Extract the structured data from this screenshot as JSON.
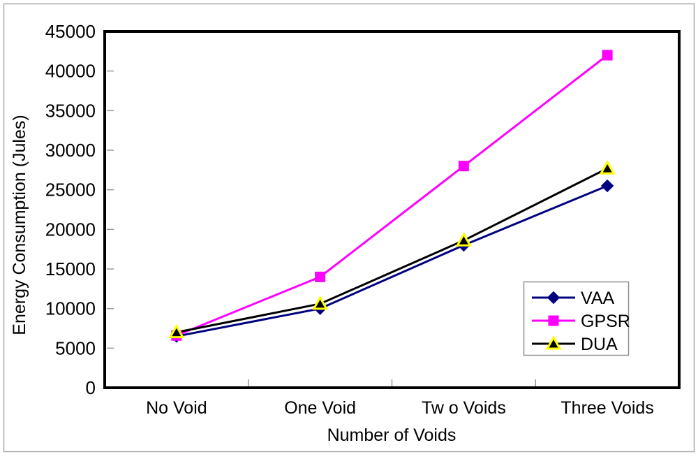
{
  "figure": {
    "background": "#ffffff",
    "outer_border_color": "#a9a9a9",
    "plot_frame_color": "#000000",
    "tick_color": "#9a9a9a"
  },
  "chart_data": {
    "type": "line",
    "title": "",
    "xlabel": "Number of Voids",
    "ylabel": "Energy Consumption (Jules)",
    "categories": [
      "No Void",
      "One Void",
      "Tw o Voids",
      "Three Voids"
    ],
    "series": [
      {
        "name": "VAA",
        "line_color": "#000080",
        "marker": "diamond",
        "marker_fill": "#000080",
        "marker_stroke": "#000080",
        "values": [
          6500,
          10000,
          18000,
          25500
        ]
      },
      {
        "name": "GPSR",
        "line_color": "#ff00ff",
        "marker": "square",
        "marker_fill": "#ff00ff",
        "marker_stroke": "#ff00ff",
        "values": [
          6600,
          14000,
          28000,
          42000
        ]
      },
      {
        "name": "DUA",
        "line_color": "#000000",
        "marker": "triangle",
        "marker_fill": "#000000",
        "marker_stroke": "#ffff00",
        "values": [
          7000,
          10600,
          18600,
          27700
        ]
      }
    ],
    "ylim": [
      0,
      45000
    ],
    "ytick_step": 5000,
    "ytick_labels": [
      "0",
      "5000",
      "10000",
      "15000",
      "20000",
      "25000",
      "30000",
      "35000",
      "40000",
      "45000"
    ],
    "grid": false,
    "legend_position": "middle-right"
  }
}
